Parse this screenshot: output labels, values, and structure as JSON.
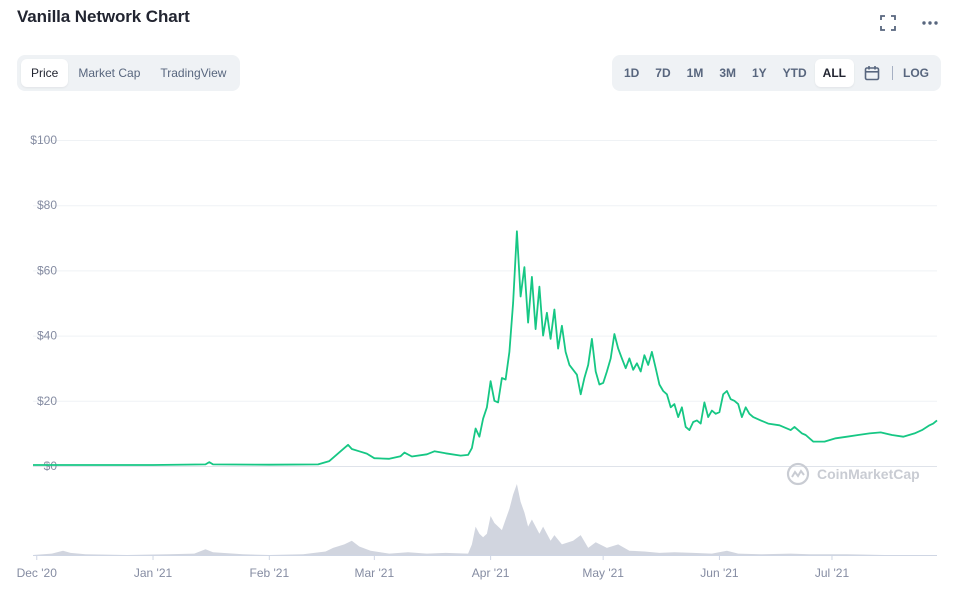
{
  "header": {
    "title": "Vanilla Network Chart",
    "fullscreen_icon": "fullscreen-icon",
    "more_icon": "more-horizontal-icon"
  },
  "view_tabs": [
    {
      "label": "Price",
      "active": true
    },
    {
      "label": "Market Cap",
      "active": false
    },
    {
      "label": "TradingView",
      "active": false
    }
  ],
  "range_tabs": [
    {
      "label": "1D",
      "active": false
    },
    {
      "label": "7D",
      "active": false
    },
    {
      "label": "1M",
      "active": false
    },
    {
      "label": "3M",
      "active": false
    },
    {
      "label": "1Y",
      "active": false
    },
    {
      "label": "YTD",
      "active": false
    },
    {
      "label": "ALL",
      "active": true
    }
  ],
  "calendar_icon": "calendar-icon",
  "log_label": "LOG",
  "watermark": "CoinMarketCap",
  "colors": {
    "line": "#16c784",
    "volume": "#d1d5df",
    "grid": "#eff2f5",
    "axis": "#cfd6e4"
  },
  "chart_data": {
    "type": "line",
    "title": "",
    "xlabel": "",
    "ylabel": "",
    "ylim": [
      0,
      100
    ],
    "yticks": [
      0,
      20,
      40,
      60,
      80,
      100
    ],
    "ytick_labels": [
      "$0",
      "$20",
      "$40",
      "$60",
      "$80",
      "$100"
    ],
    "xticks": [
      {
        "label": "Dec '20",
        "date": "2020-12-01"
      },
      {
        "label": "Jan '21",
        "date": "2021-01-01"
      },
      {
        "label": "Feb '21",
        "date": "2021-02-01"
      },
      {
        "label": "Mar '21",
        "date": "2021-03-01"
      },
      {
        "label": "Apr '21",
        "date": "2021-04-01"
      },
      {
        "label": "May '21",
        "date": "2021-05-01"
      },
      {
        "label": "Jun '21",
        "date": "2021-06-01"
      },
      {
        "label": "Jul '21",
        "date": "2021-07-01"
      }
    ],
    "xlim": [
      "2020-11-30",
      "2021-07-29"
    ],
    "grid": true,
    "series": [
      {
        "values": [
          [
            "2020-11-30",
            0.3
          ],
          [
            "2020-12-15",
            0.3
          ],
          [
            "2021-01-01",
            0.3
          ],
          [
            "2021-01-15",
            0.5
          ],
          [
            "2021-01-16",
            1.2
          ],
          [
            "2021-01-17",
            0.5
          ],
          [
            "2021-02-01",
            0.4
          ],
          [
            "2021-02-14",
            0.5
          ],
          [
            "2021-02-17",
            1.5
          ],
          [
            "2021-02-19",
            3.5
          ],
          [
            "2021-02-21",
            5.5
          ],
          [
            "2021-02-22",
            6.5
          ],
          [
            "2021-02-23",
            5.2
          ],
          [
            "2021-02-25",
            4.5
          ],
          [
            "2021-02-27",
            3.8
          ],
          [
            "2021-03-01",
            2.4
          ],
          [
            "2021-03-05",
            2.2
          ],
          [
            "2021-03-08",
            3.0
          ],
          [
            "2021-03-09",
            4.1
          ],
          [
            "2021-03-11",
            2.9
          ],
          [
            "2021-03-15",
            3.6
          ],
          [
            "2021-03-17",
            4.5
          ],
          [
            "2021-03-20",
            3.9
          ],
          [
            "2021-03-24",
            3.2
          ],
          [
            "2021-03-26",
            3.4
          ],
          [
            "2021-03-27",
            5.5
          ],
          [
            "2021-03-28",
            11.5
          ],
          [
            "2021-03-29",
            9.0
          ],
          [
            "2021-03-30",
            14.5
          ],
          [
            "2021-03-31",
            18.0
          ],
          [
            "2021-04-01",
            26.0
          ],
          [
            "2021-04-02",
            20.0
          ],
          [
            "2021-04-03",
            19.5
          ],
          [
            "2021-04-04",
            27.0
          ],
          [
            "2021-04-05",
            26.5
          ],
          [
            "2021-04-06",
            35.0
          ],
          [
            "2021-04-07",
            50.0
          ],
          [
            "2021-04-08",
            72.0
          ],
          [
            "2021-04-09",
            52.0
          ],
          [
            "2021-04-10",
            61.0
          ],
          [
            "2021-04-11",
            44.0
          ],
          [
            "2021-04-12",
            58.0
          ],
          [
            "2021-04-13",
            42.0
          ],
          [
            "2021-04-14",
            55.0
          ],
          [
            "2021-04-15",
            40.0
          ],
          [
            "2021-04-16",
            47.0
          ],
          [
            "2021-04-17",
            39.0
          ],
          [
            "2021-04-18",
            48.0
          ],
          [
            "2021-04-19",
            36.0
          ],
          [
            "2021-04-20",
            43.0
          ],
          [
            "2021-04-21",
            35.0
          ],
          [
            "2021-04-22",
            31.0
          ],
          [
            "2021-04-24",
            28.0
          ],
          [
            "2021-04-25",
            22.0
          ],
          [
            "2021-04-26",
            27.0
          ],
          [
            "2021-04-27",
            31.0
          ],
          [
            "2021-04-28",
            39.0
          ],
          [
            "2021-04-29",
            29.0
          ],
          [
            "2021-04-30",
            25.0
          ],
          [
            "2021-05-01",
            25.5
          ],
          [
            "2021-05-02",
            29.0
          ],
          [
            "2021-05-03",
            33.0
          ],
          [
            "2021-05-04",
            40.5
          ],
          [
            "2021-05-05",
            36.0
          ],
          [
            "2021-05-06",
            33.0
          ],
          [
            "2021-05-07",
            30.0
          ],
          [
            "2021-05-08",
            33.0
          ],
          [
            "2021-05-09",
            29.5
          ],
          [
            "2021-05-10",
            31.5
          ],
          [
            "2021-05-11",
            29.0
          ],
          [
            "2021-05-12",
            34.0
          ],
          [
            "2021-05-13",
            31.0
          ],
          [
            "2021-05-14",
            35.0
          ],
          [
            "2021-05-15",
            30.0
          ],
          [
            "2021-05-16",
            25.0
          ],
          [
            "2021-05-17",
            23.0
          ],
          [
            "2021-05-18",
            22.0
          ],
          [
            "2021-05-19",
            18.0
          ],
          [
            "2021-05-20",
            19.0
          ],
          [
            "2021-05-21",
            15.0
          ],
          [
            "2021-05-22",
            18.0
          ],
          [
            "2021-05-23",
            12.0
          ],
          [
            "2021-05-24",
            11.0
          ],
          [
            "2021-05-25",
            13.5
          ],
          [
            "2021-05-26",
            14.0
          ],
          [
            "2021-05-27",
            13.0
          ],
          [
            "2021-05-28",
            19.5
          ],
          [
            "2021-05-29",
            15.0
          ],
          [
            "2021-05-30",
            17.0
          ],
          [
            "2021-05-31",
            16.0
          ],
          [
            "2021-06-01",
            16.5
          ],
          [
            "2021-06-02",
            22.0
          ],
          [
            "2021-06-03",
            23.0
          ],
          [
            "2021-06-04",
            20.5
          ],
          [
            "2021-06-05",
            20.0
          ],
          [
            "2021-06-06",
            19.0
          ],
          [
            "2021-06-07",
            15.0
          ],
          [
            "2021-06-08",
            18.0
          ],
          [
            "2021-06-09",
            16.0
          ],
          [
            "2021-06-10",
            15.0
          ],
          [
            "2021-06-12",
            14.0
          ],
          [
            "2021-06-14",
            13.0
          ],
          [
            "2021-06-17",
            12.5
          ],
          [
            "2021-06-20",
            11.0
          ],
          [
            "2021-06-21",
            12.0
          ],
          [
            "2021-06-23",
            10.0
          ],
          [
            "2021-06-24",
            9.5
          ],
          [
            "2021-06-26",
            7.5
          ],
          [
            "2021-06-29",
            7.5
          ],
          [
            "2021-07-02",
            8.5
          ],
          [
            "2021-07-05",
            9.0
          ],
          [
            "2021-07-08",
            9.5
          ],
          [
            "2021-07-11",
            10.0
          ],
          [
            "2021-07-14",
            10.3
          ],
          [
            "2021-07-17",
            9.5
          ],
          [
            "2021-07-20",
            9.0
          ],
          [
            "2021-07-23",
            10.0
          ],
          [
            "2021-07-25",
            11.0
          ],
          [
            "2021-07-27",
            12.5
          ],
          [
            "2021-07-28",
            13.0
          ],
          [
            "2021-07-29",
            14.0
          ]
        ]
      }
    ],
    "volume": {
      "type": "area",
      "values": [
        [
          "2020-11-30",
          0.0
        ],
        [
          "2020-12-05",
          0.02
        ],
        [
          "2020-12-08",
          0.06
        ],
        [
          "2020-12-10",
          0.03
        ],
        [
          "2020-12-14",
          0.01
        ],
        [
          "2020-12-25",
          0.0
        ],
        [
          "2021-01-05",
          0.01
        ],
        [
          "2021-01-12",
          0.02
        ],
        [
          "2021-01-15",
          0.08
        ],
        [
          "2021-01-17",
          0.04
        ],
        [
          "2021-01-25",
          0.01
        ],
        [
          "2021-02-01",
          0.0
        ],
        [
          "2021-02-10",
          0.01
        ],
        [
          "2021-02-16",
          0.05
        ],
        [
          "2021-02-18",
          0.1
        ],
        [
          "2021-02-21",
          0.15
        ],
        [
          "2021-02-23",
          0.2
        ],
        [
          "2021-02-25",
          0.12
        ],
        [
          "2021-02-28",
          0.06
        ],
        [
          "2021-03-05",
          0.02
        ],
        [
          "2021-03-10",
          0.04
        ],
        [
          "2021-03-15",
          0.02
        ],
        [
          "2021-03-20",
          0.03
        ],
        [
          "2021-03-26",
          0.02
        ],
        [
          "2021-03-27",
          0.15
        ],
        [
          "2021-03-28",
          0.4
        ],
        [
          "2021-03-29",
          0.3
        ],
        [
          "2021-03-30",
          0.25
        ],
        [
          "2021-03-31",
          0.3
        ],
        [
          "2021-04-01",
          0.55
        ],
        [
          "2021-04-02",
          0.45
        ],
        [
          "2021-04-04",
          0.35
        ],
        [
          "2021-04-05",
          0.5
        ],
        [
          "2021-04-06",
          0.65
        ],
        [
          "2021-04-07",
          0.85
        ],
        [
          "2021-04-08",
          1.0
        ],
        [
          "2021-04-09",
          0.75
        ],
        [
          "2021-04-10",
          0.6
        ],
        [
          "2021-04-11",
          0.4
        ],
        [
          "2021-04-12",
          0.5
        ],
        [
          "2021-04-14",
          0.3
        ],
        [
          "2021-04-15",
          0.4
        ],
        [
          "2021-04-17",
          0.2
        ],
        [
          "2021-04-18",
          0.28
        ],
        [
          "2021-04-20",
          0.15
        ],
        [
          "2021-04-23",
          0.2
        ],
        [
          "2021-04-25",
          0.28
        ],
        [
          "2021-04-27",
          0.1
        ],
        [
          "2021-04-29",
          0.18
        ],
        [
          "2021-05-02",
          0.1
        ],
        [
          "2021-05-05",
          0.15
        ],
        [
          "2021-05-08",
          0.06
        ],
        [
          "2021-05-12",
          0.05
        ],
        [
          "2021-05-16",
          0.03
        ],
        [
          "2021-05-20",
          0.04
        ],
        [
          "2021-05-25",
          0.03
        ],
        [
          "2021-05-30",
          0.02
        ],
        [
          "2021-06-03",
          0.06
        ],
        [
          "2021-06-06",
          0.02
        ],
        [
          "2021-06-12",
          0.01
        ],
        [
          "2021-06-20",
          0.02
        ],
        [
          "2021-06-25",
          0.01
        ],
        [
          "2021-07-05",
          0.01
        ],
        [
          "2021-07-15",
          0.0
        ],
        [
          "2021-07-29",
          0.0
        ]
      ]
    }
  }
}
